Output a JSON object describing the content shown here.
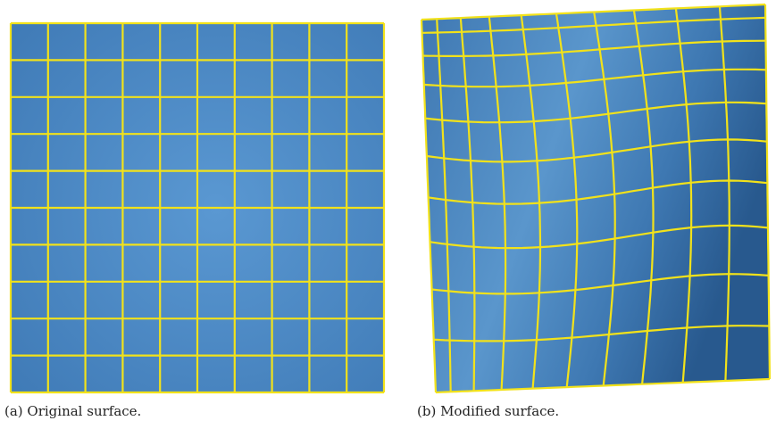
{
  "figures": [
    {
      "caption": "(a) Original surface."
    },
    {
      "caption": "(b) Modified surface."
    }
  ]
}
